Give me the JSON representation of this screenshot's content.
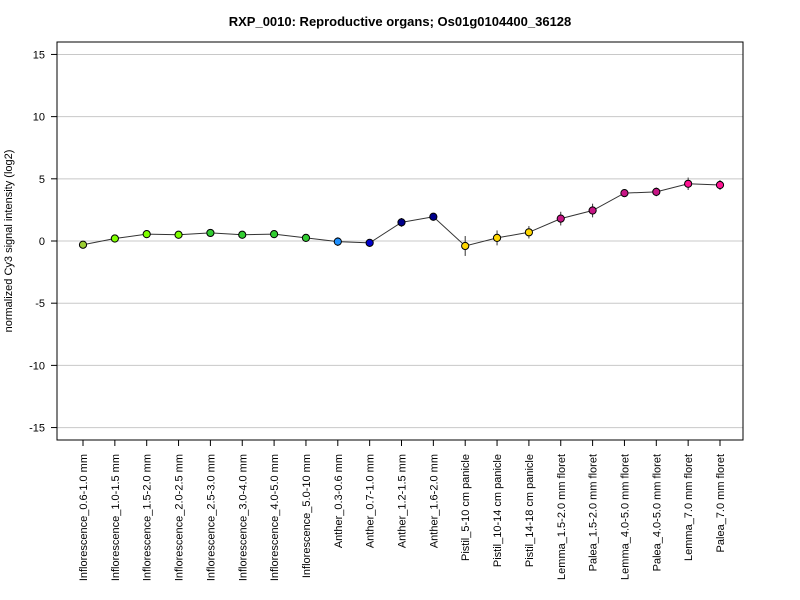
{
  "chart_data": {
    "type": "line",
    "title": "RXP_0010: Reproductive organs; Os01g0104400_36128",
    "xlabel": "",
    "ylabel": "normalized Cy3 signal intensity (log2)",
    "ylim": [
      -16,
      16
    ],
    "yticks": [
      -15,
      -10,
      -5,
      0,
      5,
      10,
      15
    ],
    "grid": "horizontal",
    "categories": [
      "Inflorescence_0.6-1.0 mm",
      "Inflorescence_1.0-1.5 mm",
      "Inflorescence_1.5-2.0 mm",
      "Inflorescence_2.0-2.5 mm",
      "Inflorescence_2.5-3.0 mm",
      "Inflorescence_3.0-4.0 mm",
      "Inflorescence_4.0-5.0 mm",
      "Inflorescence_5.0-10 mm",
      "Anther_0.3-0.6 mm",
      "Anther_0.7-1.0 mm",
      "Anther_1.2-1.5 mm",
      "Anther_1.6-2.0 mm",
      "Pistil_5-10 cm panicle",
      "Pistil_10-14 cm panicle",
      "Pistil_14-18 cm panicle",
      "Lemma_1.5-2.0 mm floret",
      "Palea_1.5-2.0 mm floret",
      "Lemma_4.0-5.0 mm floret",
      "Palea_4.0-5.0 mm floret",
      "Lemma_7.0 mm floret",
      "Palea_7.0 mm floret"
    ],
    "series": [
      {
        "values": [
          -0.3,
          0.2,
          0.55,
          0.5,
          0.65,
          0.5,
          0.55,
          0.25,
          -0.05,
          -0.15,
          1.5,
          1.95,
          -0.4,
          0.25,
          0.7,
          1.8,
          2.45,
          3.85,
          3.95,
          4.6,
          4.5
        ],
        "errors": [
          0.15,
          0.15,
          0.15,
          0.1,
          0.15,
          0.1,
          0.1,
          0.15,
          0.35,
          0.2,
          0.35,
          0.15,
          0.8,
          0.6,
          0.5,
          0.55,
          0.55,
          0.2,
          0.35,
          0.5,
          0.4
        ],
        "colors": [
          "#9acd32",
          "#7fff00",
          "#7fff00",
          "#7fff00",
          "#32cd32",
          "#32cd32",
          "#32cd32",
          "#32cd32",
          "#1e90ff",
          "#0000cd",
          "#00008b",
          "#00008b",
          "#ffd700",
          "#ffd700",
          "#ffd700",
          "#c71585",
          "#c71585",
          "#c71585",
          "#c71585",
          "#ff1493",
          "#ff1493"
        ]
      }
    ],
    "line_color": "#333333",
    "grid_color": "#c8c8c8"
  }
}
